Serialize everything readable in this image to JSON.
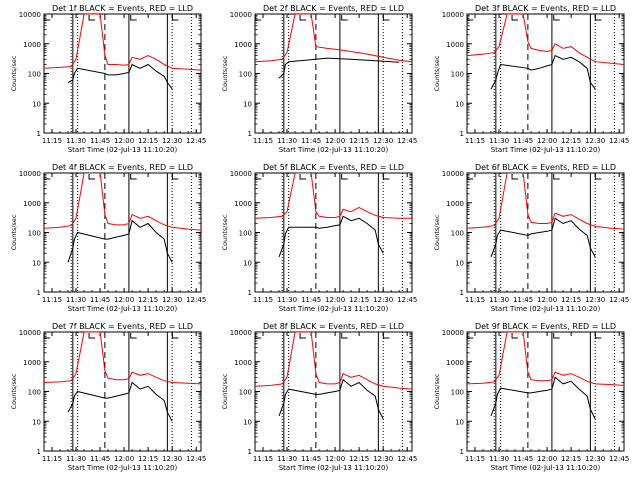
{
  "shared": {
    "ylabel": "Counts/sec",
    "xlabel": "Start Time (02-Jul-13 11:10:20)",
    "x_ticks": [
      "11:15",
      "11:30",
      "11:45",
      "12:00",
      "12:15",
      "12:30",
      "12:45"
    ],
    "y_ticks": [
      "1",
      "10",
      "100",
      "1000",
      "10000"
    ],
    "colors": {
      "events": "#000000",
      "lld": "#ff0000"
    }
  },
  "panels": [
    {
      "title": "Det 1f BLACK = Events, RED = LLD"
    },
    {
      "title": "Det 2f BLACK = Events, RED = LLD"
    },
    {
      "title": "Det 3f BLACK = Events, RED = LLD"
    },
    {
      "title": "Det 4f BLACK = Events, RED = LLD"
    },
    {
      "title": "Det 5f BLACK = Events, RED = LLD"
    },
    {
      "title": "Det 6f BLACK = Events, RED = LLD"
    },
    {
      "title": "Det 7f BLACK = Events, RED = LLD"
    },
    {
      "title": "Det 8f BLACK = Events, RED = LLD"
    },
    {
      "title": "Det 9f BLACK = Events, RED = LLD"
    }
  ],
  "chart_data": [
    {
      "type": "line",
      "title": "Det 1f BLACK = Events, RED = LLD",
      "xlabel": "Start Time (02-Jul-13 11:10:20)",
      "ylabel": "Counts/sec",
      "y_scale": "log",
      "ylim": [
        1,
        10000
      ],
      "xlim": [
        "11:10",
        "12:48"
      ],
      "series": [
        {
          "name": "LLD",
          "color": "#ff0000",
          "x": [
            "11:10",
            "11:20",
            "11:27",
            "11:30",
            "11:35",
            "11:40",
            "11:45",
            "11:48",
            "11:50",
            "11:55",
            "12:00",
            "12:03",
            "12:05",
            "12:10",
            "12:15",
            "12:20",
            "12:25",
            "12:30",
            "12:40",
            "12:48"
          ],
          "y": [
            150,
            160,
            170,
            300,
            10000,
            10000,
            10000,
            400,
            200,
            200,
            190,
            200,
            350,
            300,
            400,
            300,
            200,
            150,
            140,
            130
          ]
        },
        {
          "name": "Events",
          "color": "#000000",
          "x": [
            "11:25",
            "11:28",
            "11:29",
            "11:31",
            "11:48",
            "11:50",
            "11:55",
            "12:00",
            "12:03",
            "12:05",
            "12:10",
            "12:15",
            "12:20",
            "12:25",
            "12:27",
            "12:30"
          ],
          "y": [
            50,
            60,
            100,
            150,
            100,
            90,
            90,
            100,
            110,
            200,
            150,
            200,
            120,
            80,
            50,
            30
          ]
        }
      ]
    },
    {
      "type": "line",
      "title": "Det 2f BLACK = Events, RED = LLD",
      "xlabel": "Start Time (02-Jul-13 11:10:20)",
      "ylabel": "Counts/sec",
      "y_scale": "log",
      "ylim": [
        1,
        10000
      ],
      "xlim": [
        "11:10",
        "12:48"
      ],
      "series": [
        {
          "name": "LLD",
          "color": "#ff0000",
          "x": [
            "11:10",
            "11:20",
            "11:27",
            "11:30",
            "11:35",
            "11:40",
            "11:45",
            "11:48",
            "11:55",
            "12:00",
            "12:10",
            "12:20",
            "12:30",
            "12:40",
            "12:48"
          ],
          "y": [
            250,
            270,
            300,
            500,
            10000,
            10000,
            10000,
            800,
            700,
            650,
            550,
            450,
            350,
            280,
            250
          ]
        },
        {
          "name": "Events",
          "color": "#000000",
          "x": [
            "11:25",
            "11:28",
            "11:29",
            "11:31",
            "11:48",
            "11:55",
            "12:00",
            "12:10",
            "12:20",
            "12:30",
            "12:40"
          ],
          "y": [
            70,
            100,
            200,
            250,
            300,
            330,
            320,
            300,
            280,
            260,
            240
          ]
        }
      ]
    },
    {
      "type": "line",
      "title": "Det 3f BLACK = Events, RED = LLD",
      "xlabel": "Start Time (02-Jul-13 11:10:20)",
      "ylabel": "Counts/sec",
      "y_scale": "log",
      "ylim": [
        1,
        10000
      ],
      "xlim": [
        "11:10",
        "12:48"
      ],
      "series": [
        {
          "name": "LLD",
          "color": "#ff0000",
          "x": [
            "11:10",
            "11:20",
            "11:27",
            "11:30",
            "11:35",
            "11:40",
            "11:45",
            "11:48",
            "11:50",
            "11:55",
            "12:00",
            "12:03",
            "12:05",
            "12:10",
            "12:15",
            "12:20",
            "12:25",
            "12:30",
            "12:40",
            "12:48"
          ],
          "y": [
            400,
            450,
            500,
            800,
            10000,
            10000,
            10000,
            1200,
            700,
            600,
            550,
            600,
            1000,
            700,
            800,
            500,
            350,
            250,
            220,
            200
          ]
        },
        {
          "name": "Events",
          "color": "#000000",
          "x": [
            "11:25",
            "11:28",
            "11:29",
            "11:31",
            "11:48",
            "11:50",
            "11:55",
            "12:00",
            "12:03",
            "12:05",
            "12:10",
            "12:15",
            "12:20",
            "12:25",
            "12:27",
            "12:30"
          ],
          "y": [
            30,
            60,
            100,
            200,
            150,
            130,
            150,
            180,
            200,
            400,
            300,
            350,
            250,
            150,
            50,
            30
          ]
        }
      ]
    },
    {
      "type": "line",
      "title": "Det 4f BLACK = Events, RED = LLD",
      "xlabel": "Start Time (02-Jul-13 11:10:20)",
      "ylabel": "Counts/sec",
      "y_scale": "log",
      "ylim": [
        1,
        10000
      ],
      "xlim": [
        "11:10",
        "12:48"
      ],
      "series": [
        {
          "name": "LLD",
          "color": "#ff0000",
          "x": [
            "11:10",
            "11:20",
            "11:27",
            "11:30",
            "11:35",
            "11:40",
            "11:45",
            "11:48",
            "11:50",
            "11:55",
            "12:00",
            "12:03",
            "12:05",
            "12:10",
            "12:15",
            "12:20",
            "12:25",
            "12:30",
            "12:40",
            "12:48"
          ],
          "y": [
            140,
            150,
            170,
            300,
            10000,
            10000,
            10000,
            400,
            200,
            180,
            180,
            200,
            400,
            300,
            350,
            250,
            180,
            150,
            130,
            120
          ]
        },
        {
          "name": "Events",
          "color": "#000000",
          "x": [
            "11:25",
            "11:28",
            "11:29",
            "11:31",
            "11:48",
            "11:50",
            "11:55",
            "12:00",
            "12:03",
            "12:05",
            "12:10",
            "12:15",
            "12:20",
            "12:25",
            "12:27",
            "12:30"
          ],
          "y": [
            10,
            30,
            60,
            100,
            60,
            60,
            70,
            80,
            90,
            250,
            150,
            200,
            100,
            60,
            20,
            10
          ]
        }
      ]
    },
    {
      "type": "line",
      "title": "Det 5f BLACK = Events, RED = LLD",
      "xlabel": "Start Time (02-Jul-13 11:10:20)",
      "ylabel": "Counts/sec",
      "y_scale": "log",
      "ylim": [
        1,
        10000
      ],
      "xlim": [
        "11:10",
        "12:48"
      ],
      "series": [
        {
          "name": "LLD",
          "color": "#ff0000",
          "x": [
            "11:10",
            "11:20",
            "11:27",
            "11:30",
            "11:35",
            "11:40",
            "11:45",
            "11:48",
            "11:50",
            "11:55",
            "12:00",
            "12:03",
            "12:05",
            "12:10",
            "12:15",
            "12:20",
            "12:25",
            "12:30",
            "12:40",
            "12:48"
          ],
          "y": [
            300,
            320,
            350,
            500,
            10000,
            10000,
            10000,
            500,
            350,
            320,
            320,
            350,
            600,
            500,
            700,
            500,
            380,
            320,
            300,
            300
          ]
        },
        {
          "name": "Events",
          "color": "#000000",
          "x": [
            "11:25",
            "11:28",
            "11:29",
            "11:31",
            "11:48",
            "11:50",
            "11:55",
            "12:00",
            "12:03",
            "12:05",
            "12:10",
            "12:15",
            "12:20",
            "12:25",
            "12:27",
            "12:30"
          ],
          "y": [
            15,
            40,
            90,
            150,
            150,
            140,
            150,
            170,
            180,
            350,
            250,
            300,
            200,
            120,
            40,
            20
          ]
        }
      ]
    },
    {
      "type": "line",
      "title": "Det 6f BLACK = Events, RED = LLD",
      "xlabel": "Start Time (02-Jul-13 11:10:20)",
      "ylabel": "Counts/sec",
      "y_scale": "log",
      "ylim": [
        1,
        10000
      ],
      "xlim": [
        "11:10",
        "12:48"
      ],
      "series": [
        {
          "name": "LLD",
          "color": "#ff0000",
          "x": [
            "11:10",
            "11:20",
            "11:27",
            "11:30",
            "11:35",
            "11:40",
            "11:45",
            "11:48",
            "11:50",
            "11:55",
            "12:00",
            "12:03",
            "12:05",
            "12:10",
            "12:15",
            "12:20",
            "12:25",
            "12:30",
            "12:40",
            "12:48"
          ],
          "y": [
            140,
            150,
            170,
            300,
            10000,
            10000,
            10000,
            400,
            220,
            200,
            200,
            220,
            450,
            350,
            400,
            280,
            200,
            160,
            140,
            130
          ]
        },
        {
          "name": "Events",
          "color": "#000000",
          "x": [
            "11:25",
            "11:28",
            "11:29",
            "11:31",
            "11:48",
            "11:50",
            "11:55",
            "12:00",
            "12:03",
            "12:05",
            "12:10",
            "12:15",
            "12:20",
            "12:25",
            "12:27",
            "12:30"
          ],
          "y": [
            15,
            40,
            80,
            120,
            80,
            90,
            100,
            110,
            120,
            300,
            200,
            250,
            130,
            80,
            30,
            15
          ]
        }
      ]
    },
    {
      "type": "line",
      "title": "Det 7f BLACK = Events, RED = LLD",
      "xlabel": "Start Time (02-Jul-13 11:10:20)",
      "ylabel": "Counts/sec",
      "y_scale": "log",
      "ylim": [
        1,
        10000
      ],
      "xlim": [
        "11:10",
        "12:48"
      ],
      "series": [
        {
          "name": "LLD",
          "color": "#ff0000",
          "x": [
            "11:10",
            "11:20",
            "11:27",
            "11:30",
            "11:35",
            "11:40",
            "11:45",
            "11:48",
            "11:50",
            "11:55",
            "12:00",
            "12:03",
            "12:05",
            "12:10",
            "12:15",
            "12:20",
            "12:25",
            "12:30",
            "12:40",
            "12:48"
          ],
          "y": [
            200,
            210,
            230,
            400,
            10000,
            10000,
            10000,
            500,
            280,
            250,
            250,
            270,
            450,
            350,
            400,
            300,
            230,
            200,
            190,
            180
          ]
        },
        {
          "name": "Events",
          "color": "#000000",
          "x": [
            "11:25",
            "11:28",
            "11:29",
            "11:31",
            "11:48",
            "11:50",
            "11:55",
            "12:00",
            "12:03",
            "12:05",
            "12:10",
            "12:15",
            "12:20",
            "12:25",
            "12:27",
            "12:30"
          ],
          "y": [
            20,
            40,
            70,
            100,
            60,
            60,
            70,
            80,
            90,
            200,
            120,
            150,
            80,
            50,
            20,
            10
          ]
        }
      ]
    },
    {
      "type": "line",
      "title": "Det 8f BLACK = Events, RED = LLD",
      "xlabel": "Start Time (02-Jul-13 11:10:20)",
      "ylabel": "Counts/sec",
      "y_scale": "log",
      "ylim": [
        1,
        10000
      ],
      "xlim": [
        "11:10",
        "12:48"
      ],
      "series": [
        {
          "name": "LLD",
          "color": "#ff0000",
          "x": [
            "11:10",
            "11:20",
            "11:27",
            "11:30",
            "11:35",
            "11:40",
            "11:45",
            "11:48",
            "11:50",
            "11:55",
            "12:00",
            "12:03",
            "12:05",
            "12:10",
            "12:15",
            "12:20",
            "12:25",
            "12:30",
            "12:40",
            "12:48"
          ],
          "y": [
            150,
            160,
            180,
            300,
            10000,
            10000,
            10000,
            400,
            200,
            180,
            180,
            200,
            400,
            300,
            350,
            250,
            180,
            150,
            130,
            120
          ]
        },
        {
          "name": "Events",
          "color": "#000000",
          "x": [
            "11:25",
            "11:28",
            "11:29",
            "11:31",
            "11:48",
            "11:50",
            "11:55",
            "12:00",
            "12:03",
            "12:05",
            "12:10",
            "12:15",
            "12:20",
            "12:25",
            "12:27",
            "12:30"
          ],
          "y": [
            15,
            40,
            80,
            120,
            80,
            80,
            90,
            100,
            110,
            250,
            150,
            200,
            110,
            70,
            25,
            12
          ]
        }
      ]
    },
    {
      "type": "line",
      "title": "Det 9f BLACK = Events, RED = LLD",
      "xlabel": "Start Time (02-Jul-13 11:10:20)",
      "ylabel": "Counts/sec",
      "y_scale": "log",
      "ylim": [
        1,
        10000
      ],
      "xlim": [
        "11:10",
        "12:48"
      ],
      "series": [
        {
          "name": "LLD",
          "color": "#ff0000",
          "x": [
            "11:10",
            "11:20",
            "11:27",
            "11:30",
            "11:35",
            "11:40",
            "11:45",
            "11:48",
            "11:50",
            "11:55",
            "12:00",
            "12:03",
            "12:05",
            "12:10",
            "12:15",
            "12:20",
            "12:25",
            "12:30",
            "12:40",
            "12:48"
          ],
          "y": [
            180,
            190,
            210,
            350,
            10000,
            10000,
            10000,
            450,
            250,
            230,
            230,
            250,
            450,
            350,
            400,
            300,
            220,
            180,
            170,
            160
          ]
        },
        {
          "name": "Events",
          "color": "#000000",
          "x": [
            "11:25",
            "11:28",
            "11:29",
            "11:31",
            "11:48",
            "11:50",
            "11:55",
            "12:00",
            "12:03",
            "12:05",
            "12:10",
            "12:15",
            "12:20",
            "12:25",
            "12:27",
            "12:30"
          ],
          "y": [
            15,
            40,
            80,
            130,
            90,
            90,
            100,
            110,
            120,
            300,
            180,
            220,
            120,
            70,
            25,
            12
          ]
        }
      ]
    }
  ]
}
